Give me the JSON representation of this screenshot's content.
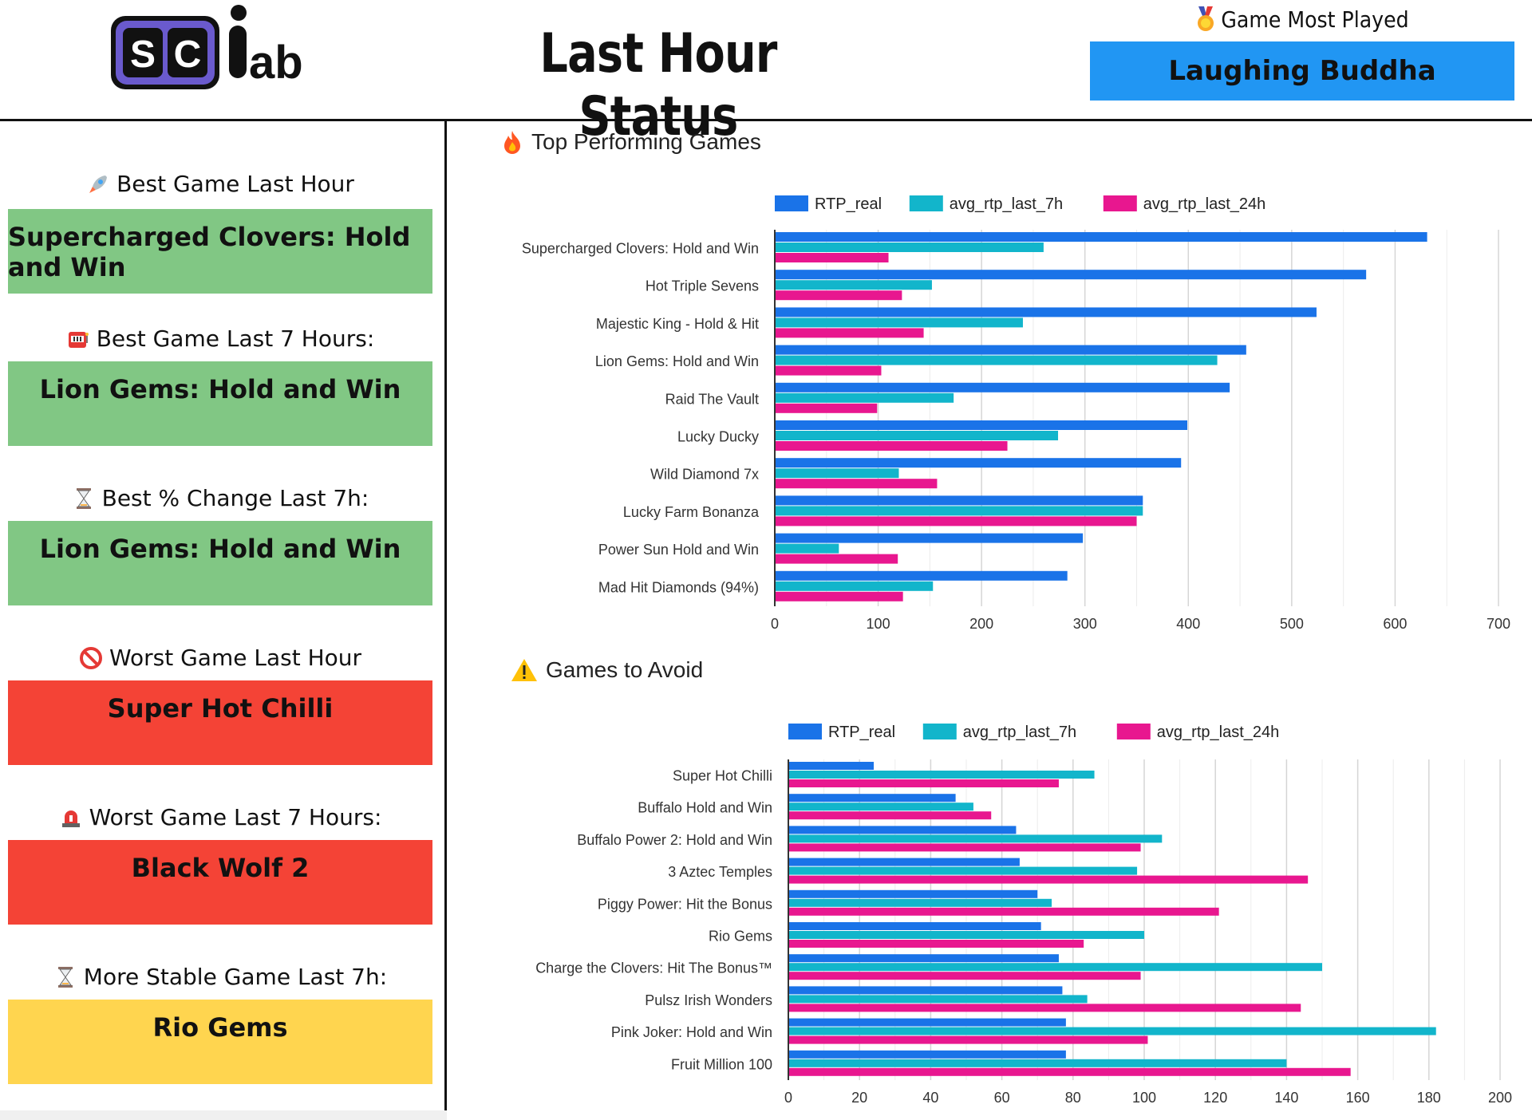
{
  "header": {
    "logo_text": "sc lab",
    "title": "Last Hour Status",
    "most_played_label": "Game Most Played",
    "most_played_value": "Laughing Buddha"
  },
  "sidebar": {
    "cards": [
      {
        "label": "Best Game Last Hour",
        "value": "Supercharged Clovers: Hold and Win",
        "color": "#81c784",
        "icon": "rocket-icon"
      },
      {
        "label": "Best Game Last 7 Hours:",
        "value": "Lion Gems: Hold and Win",
        "color": "#81c784",
        "icon": "slot-machine-icon"
      },
      {
        "label": "Best % Change Last 7h:",
        "value": "Lion Gems: Hold and Win",
        "color": "#81c784",
        "icon": "hourglass-icon"
      },
      {
        "label": "Worst Game Last Hour",
        "value": "Super Hot Chilli",
        "color": "#f44336",
        "icon": "prohibited-icon"
      },
      {
        "label": "Worst Game Last 7 Hours:",
        "value": "Black Wolf 2",
        "color": "#f44336",
        "icon": "siren-icon"
      },
      {
        "label": "More Stable Game Last 7h:",
        "value": "Rio Gems",
        "color": "#ffd54f",
        "icon": "hourglass-icon"
      }
    ]
  },
  "chart_data": [
    {
      "type": "bar",
      "orientation": "horizontal",
      "title": "Top Performing Games",
      "title_icon": "fire-icon",
      "categories": [
        "Supercharged Clovers: Hold and Win",
        "Hot Triple Sevens",
        "Majestic King - Hold & Hit",
        "Lion Gems: Hold and Win",
        "Raid The Vault",
        "Lucky Ducky",
        "Wild Diamond 7x",
        "Lucky Farm Bonanza",
        "Power Sun Hold and Win",
        "Mad Hit Diamonds (94%)"
      ],
      "series": [
        {
          "name": "RTP_real",
          "color": "#1a73e8",
          "values": [
            631,
            572,
            524,
            456,
            440,
            399,
            393,
            356,
            298,
            283
          ]
        },
        {
          "name": "avg_rtp_last_7h",
          "color": "#12b5cb",
          "values": [
            260,
            152,
            240,
            428,
            173,
            274,
            120,
            356,
            62,
            153
          ]
        },
        {
          "name": "avg_rtp_last_24h",
          "color": "#e8178f",
          "values": [
            110,
            123,
            144,
            103,
            99,
            225,
            157,
            350,
            119,
            124
          ]
        }
      ],
      "xlim": [
        0,
        700
      ],
      "xticks": [
        0,
        100,
        200,
        300,
        400,
        500,
        600,
        700
      ],
      "legend": "top",
      "grid": true
    },
    {
      "type": "bar",
      "orientation": "horizontal",
      "title": "Games to Avoid",
      "title_icon": "warning-icon",
      "categories": [
        "Super Hot Chilli",
        "Buffalo Hold and Win",
        "Buffalo Power 2: Hold and Win",
        "3 Aztec Temples",
        "Piggy Power: Hit the Bonus",
        "Rio Gems",
        "Charge the Clovers: Hit The Bonus™",
        "Pulsz Irish Wonders",
        "Pink Joker: Hold and Win",
        "Fruit Million 100"
      ],
      "series": [
        {
          "name": "RTP_real",
          "color": "#1a73e8",
          "values": [
            24,
            47,
            64,
            65,
            70,
            71,
            76,
            77,
            78,
            78
          ]
        },
        {
          "name": "avg_rtp_last_7h",
          "color": "#12b5cb",
          "values": [
            86,
            52,
            105,
            98,
            74,
            100,
            150,
            84,
            182,
            140
          ]
        },
        {
          "name": "avg_rtp_last_24h",
          "color": "#e8178f",
          "values": [
            76,
            57,
            99,
            146,
            121,
            83,
            99,
            144,
            101,
            158
          ]
        }
      ],
      "xlim": [
        0,
        200
      ],
      "xticks": [
        0,
        20,
        40,
        60,
        80,
        100,
        120,
        140,
        160,
        180,
        200
      ],
      "legend": "top",
      "grid": true
    }
  ]
}
